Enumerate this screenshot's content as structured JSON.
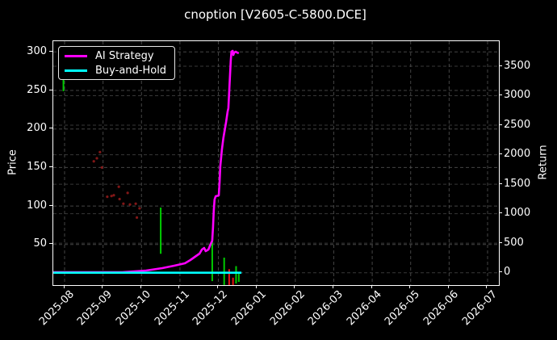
{
  "title": "cnoption [V2605-C-5800.DCE]",
  "legend": {
    "items": [
      {
        "label": "AI Strategy",
        "color": "#ff00ff"
      },
      {
        "label": "Buy-and-Hold",
        "color": "#00ffff"
      }
    ]
  },
  "axes": {
    "x": {
      "tick_labels": [
        "2025-08",
        "2025-09",
        "2025-10",
        "2025-11",
        "2025-12",
        "2026-01",
        "2026-02",
        "2026-03",
        "2026-04",
        "2026-05",
        "2026-06",
        "2026-07"
      ]
    },
    "y_left": {
      "label": "Price",
      "ticks": [
        300,
        250,
        200,
        150,
        100,
        50
      ]
    },
    "y_right": {
      "label": "Return",
      "ticks": [
        3500,
        3000,
        2500,
        2000,
        1500,
        1000,
        500,
        0
      ]
    }
  },
  "colors": {
    "background": "#000000",
    "frame": "#ffffff",
    "grid": "#565656",
    "ai_line": "#ff00ff",
    "bh_line": "#00ffff",
    "bar_green": "#00cc00",
    "bar_red": "#ee1111",
    "scatter_red": "#8f1a1a"
  },
  "chart_data": {
    "type": "line",
    "title": "cnoption [V2605-C-5800.DCE]",
    "x_unit": "months since 2025-08",
    "x_tick_labels": [
      "2025-08",
      "2025-09",
      "2025-10",
      "2025-11",
      "2025-12",
      "2026-01",
      "2026-02",
      "2026-03",
      "2026-04",
      "2026-05",
      "2026-06",
      "2026-07"
    ],
    "ylabel_left": "Price",
    "ylabel_right": "Return",
    "ylim_left": [
      -3,
      314
    ],
    "ylim_right": [
      -210,
      3925
    ],
    "grid": true,
    "legend_position": "upper left",
    "series": [
      {
        "name": "AI Strategy",
        "axis": "return",
        "color": "#ff00ff",
        "points": [
          [
            -0.29,
            10
          ],
          [
            1.5,
            10
          ],
          [
            2.12,
            37
          ],
          [
            2.54,
            78
          ],
          [
            2.85,
            119
          ],
          [
            3.13,
            160
          ],
          [
            3.27,
            215
          ],
          [
            3.42,
            283
          ],
          [
            3.51,
            324
          ],
          [
            3.57,
            393
          ],
          [
            3.63,
            420
          ],
          [
            3.67,
            365
          ],
          [
            3.74,
            393
          ],
          [
            3.8,
            489
          ],
          [
            3.84,
            543
          ],
          [
            3.86,
            776
          ],
          [
            3.88,
            1050
          ],
          [
            3.9,
            1241
          ],
          [
            3.93,
            1296
          ],
          [
            4.01,
            1310
          ],
          [
            4.03,
            1529
          ],
          [
            4.05,
            1803
          ],
          [
            4.09,
            2076
          ],
          [
            4.13,
            2282
          ],
          [
            4.2,
            2555
          ],
          [
            4.24,
            2733
          ],
          [
            4.26,
            2788
          ],
          [
            4.3,
            3308
          ],
          [
            4.32,
            3582
          ],
          [
            4.34,
            3746
          ],
          [
            4.37,
            3760
          ],
          [
            4.39,
            3691
          ],
          [
            4.41,
            3732
          ],
          [
            4.45,
            3746
          ],
          [
            4.49,
            3732
          ],
          [
            4.53,
            3719
          ]
        ]
      },
      {
        "name": "Buy-and-Hold",
        "axis": "return",
        "color": "#00ffff",
        "points": [
          [
            -0.29,
            0
          ],
          [
            4.6,
            0
          ]
        ]
      }
    ],
    "price_bars": [
      {
        "x": -0.03,
        "low": 249,
        "high": 267,
        "color": "#00cc00"
      },
      {
        "x": 2.5,
        "low": 38,
        "high": 98,
        "color": "#00cc00"
      },
      {
        "x": 3.84,
        "low": 2.5,
        "high": 62,
        "color": "#00cc00"
      },
      {
        "x": 4.15,
        "low": -2.5,
        "high": 33,
        "color": "#00cc00"
      },
      {
        "x": 4.28,
        "low": -2.5,
        "high": 18,
        "color": "#ee1111"
      },
      {
        "x": 4.38,
        "low": -2.5,
        "high": 7,
        "color": "#ee1111"
      },
      {
        "x": 4.46,
        "low": -0.5,
        "high": 22,
        "color": "#00cc00"
      },
      {
        "x": 4.53,
        "low": 1.5,
        "high": 12,
        "color": "#00cc00"
      }
    ],
    "price_scatter": {
      "color": "#8f1a1a",
      "points": [
        [
          0.92,
          170
        ],
        [
          0.84,
          162
        ],
        [
          0.76,
          158
        ],
        [
          0.97,
          150
        ],
        [
          1.41,
          125
        ],
        [
          1.22,
          113
        ],
        [
          1.28,
          114
        ],
        [
          1.11,
          112
        ],
        [
          1.43,
          109
        ],
        [
          1.64,
          117
        ],
        [
          1.53,
          103
        ],
        [
          1.7,
          102
        ],
        [
          1.85,
          103
        ],
        [
          1.95,
          97
        ],
        [
          1.88,
          85
        ]
      ]
    }
  }
}
